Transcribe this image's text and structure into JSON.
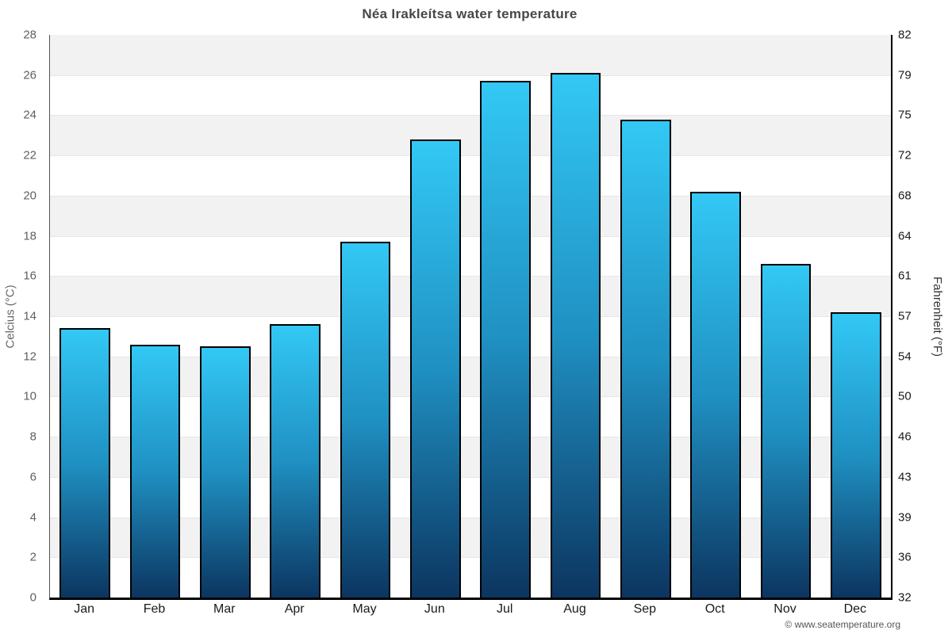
{
  "chart_data": {
    "type": "bar",
    "title": "Néa Irakleítsa water temperature",
    "categories": [
      "Jan",
      "Feb",
      "Mar",
      "Apr",
      "May",
      "Jun",
      "Jul",
      "Aug",
      "Sep",
      "Oct",
      "Nov",
      "Dec"
    ],
    "values": [
      13.4,
      12.6,
      12.5,
      13.6,
      17.7,
      22.8,
      25.7,
      26.1,
      23.8,
      20.2,
      16.6,
      14.2
    ],
    "unit": "°C",
    "ylabel_left": "Celcius (°C)",
    "ylabel_right": "Fahrenheit (°F)",
    "ylim": [
      0,
      28
    ],
    "band_step": 2,
    "yticks_celsius": [
      0,
      2,
      4,
      6,
      8,
      10,
      12,
      14,
      16,
      18,
      20,
      22,
      24,
      26,
      28
    ],
    "yticks_fahrenheit": [
      "32",
      "36",
      "39",
      "43",
      "46",
      "50",
      "54",
      "57",
      "61",
      "64",
      "68",
      "72",
      "75",
      "79",
      "82"
    ],
    "grid": "banded-rows",
    "legend_position": "none",
    "band_colors": [
      "#f2f2f2",
      "#ffffff"
    ],
    "gridline_color": "#e6e6e6",
    "bar_gradient": {
      "top": "#33c8f5",
      "mid": "#1f90c2",
      "bottom": "#0c3560"
    },
    "bar_border_color": "#000000"
  },
  "footer": {
    "text": "© www.seatemperature.org"
  }
}
